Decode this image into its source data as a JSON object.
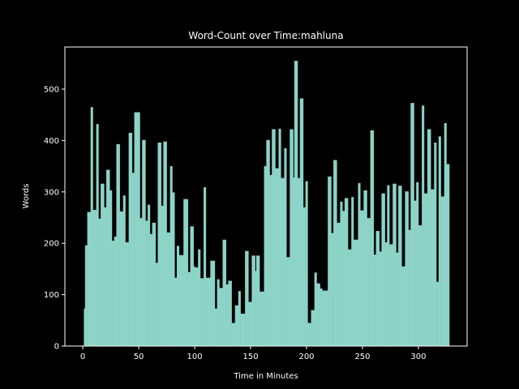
{
  "chart_data": {
    "type": "bar",
    "title": "Word-Count over Time:mahluna",
    "xlabel": "Time in Minutes",
    "ylabel": "Words",
    "x": [
      1,
      2,
      4,
      7,
      9,
      12,
      14,
      16,
      19,
      21,
      24,
      26,
      28,
      30,
      33,
      36,
      38,
      41,
      44,
      46,
      51,
      53,
      56,
      58,
      60,
      62,
      65,
      67,
      70,
      72,
      75,
      78,
      80,
      82,
      84,
      86,
      90,
      94,
      96,
      99,
      100,
      103,
      105,
      108,
      110,
      114,
      118,
      120,
      122,
      125,
      128,
      130,
      133,
      136,
      139,
      141,
      145,
      148,
      151,
      154,
      155,
      158,
      162,
      164,
      167,
      169,
      172,
      175,
      177,
      180,
      182,
      185,
      188,
      189,
      192,
      194,
      197,
      199,
      201,
      204,
      207,
      209,
      212,
      214,
      219,
      222,
      224,
      227,
      230,
      232,
      234,
      237,
      240,
      242,
      246,
      248,
      251,
      254,
      257,
      260,
      262,
      265,
      267,
      270,
      272,
      274,
      277,
      280,
      282,
      285,
      288,
      291,
      293,
      296,
      298,
      300,
      303,
      305,
      308,
      311,
      314,
      316,
      318,
      320,
      323,
      325
    ],
    "values": [
      73,
      196,
      261,
      465,
      265,
      432,
      248,
      316,
      270,
      343,
      303,
      205,
      213,
      393,
      262,
      293,
      202,
      415,
      337,
      455,
      249,
      401,
      244,
      275,
      218,
      240,
      162,
      396,
      273,
      398,
      221,
      350,
      299,
      133,
      195,
      177,
      286,
      144,
      233,
      155,
      153,
      188,
      132,
      309,
      133,
      166,
      73,
      130,
      113,
      207,
      120,
      127,
      45,
      79,
      107,
      63,
      185,
      86,
      176,
      146,
      176,
      106,
      350,
      401,
      333,
      422,
      346,
      423,
      327,
      385,
      173,
      422,
      328,
      555,
      327,
      482,
      270,
      321,
      45,
      70,
      143,
      122,
      112,
      108,
      330,
      220,
      362,
      240,
      281,
      263,
      288,
      188,
      290,
      207,
      317,
      264,
      303,
      249,
      420,
      178,
      224,
      184,
      297,
      202,
      313,
      198,
      316,
      182,
      312,
      155,
      301,
      226,
      473,
      283,
      319,
      235,
      468,
      297,
      422,
      305,
      396,
      125,
      408,
      291,
      434,
      354
    ],
    "color": "#8dd3c7",
    "xlim": [
      -16,
      343.5
    ],
    "ylim": [
      0,
      582
    ],
    "xticks": [
      0,
      50,
      100,
      150,
      200,
      250,
      300
    ],
    "yticks": [
      0,
      100,
      200,
      300,
      400,
      500
    ]
  }
}
